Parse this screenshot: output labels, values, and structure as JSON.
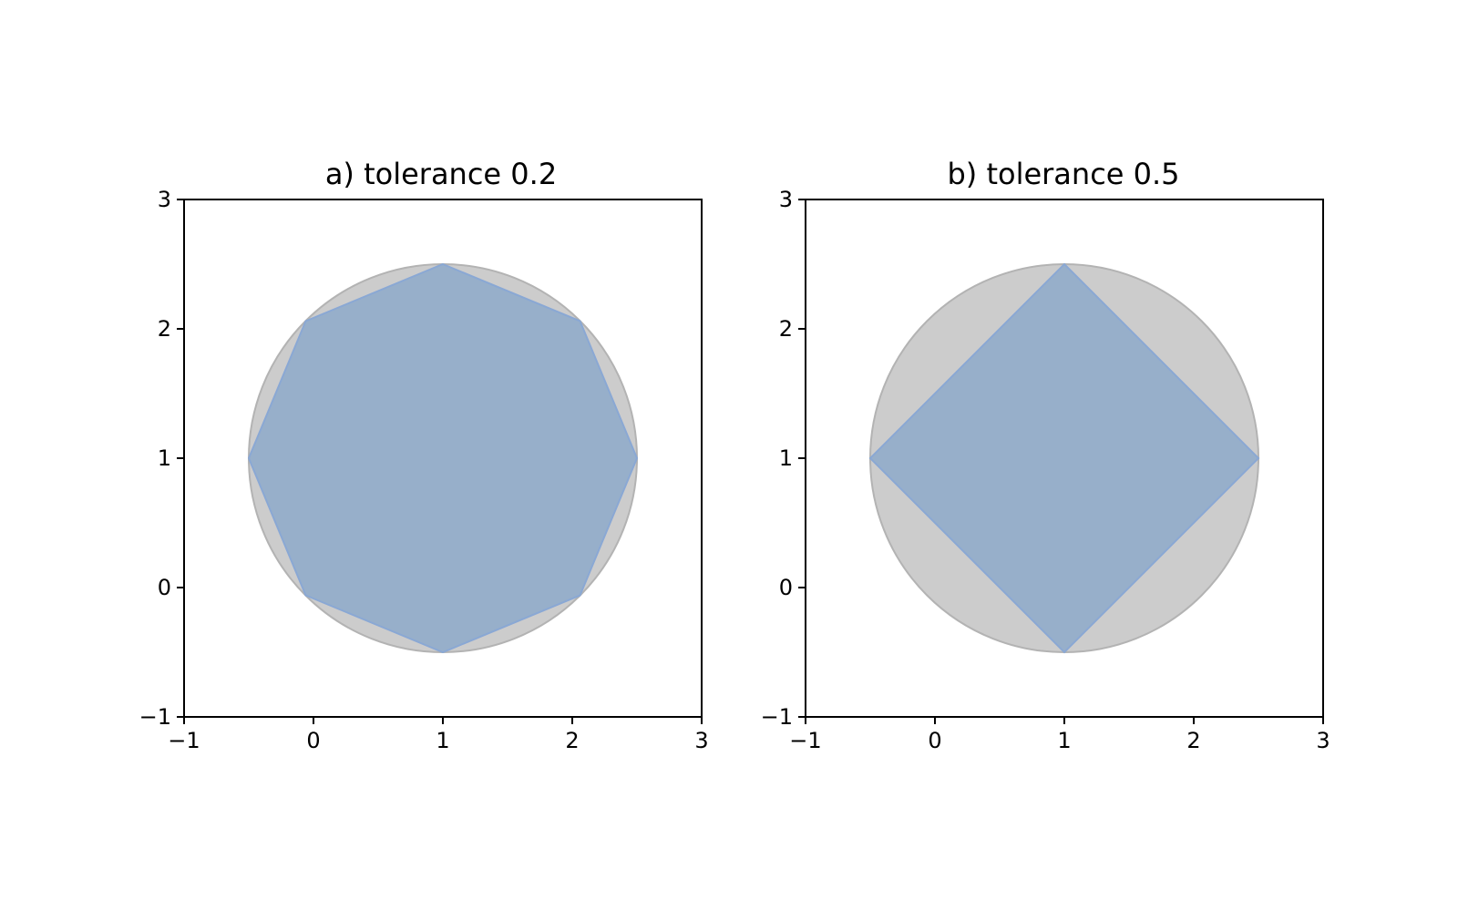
{
  "chart_data": [
    {
      "type": "area",
      "title": "a) tolerance 0.2",
      "xlim": [
        -1,
        3
      ],
      "ylim": [
        -1,
        3
      ],
      "xticks": [
        -1,
        0,
        1,
        2,
        3
      ],
      "yticks": [
        -1,
        0,
        1,
        2,
        3
      ],
      "xtick_labels": [
        "−1",
        "0",
        "1",
        "2",
        "3"
      ],
      "ytick_labels": [
        "−1",
        "0",
        "1",
        "2",
        "3"
      ],
      "circle": {
        "center": [
          1,
          1
        ],
        "radius": 1.5,
        "fill": "#cccccc",
        "stroke": "#b3b3b3"
      },
      "polygon": {
        "points": [
          [
            1,
            2.5
          ],
          [
            2.06,
            2.06
          ],
          [
            2.5,
            1
          ],
          [
            2.06,
            -0.06
          ],
          [
            1,
            -0.5
          ],
          [
            -0.06,
            -0.06
          ],
          [
            -0.5,
            1
          ],
          [
            -0.06,
            2.06
          ]
        ],
        "fill": "#97afca",
        "stroke": "#8aa8d4"
      },
      "grid": false
    },
    {
      "type": "area",
      "title": "b) tolerance 0.5",
      "xlim": [
        -1,
        3
      ],
      "ylim": [
        -1,
        3
      ],
      "xticks": [
        -1,
        0,
        1,
        2,
        3
      ],
      "yticks": [
        -1,
        0,
        1,
        2,
        3
      ],
      "xtick_labels": [
        "−1",
        "0",
        "1",
        "2",
        "3"
      ],
      "ytick_labels": [
        "−1",
        "0",
        "1",
        "2",
        "3"
      ],
      "circle": {
        "center": [
          1,
          1
        ],
        "radius": 1.5,
        "fill": "#cccccc",
        "stroke": "#b3b3b3"
      },
      "polygon": {
        "points": [
          [
            1,
            2.5
          ],
          [
            2.5,
            1
          ],
          [
            1,
            -0.5
          ],
          [
            -0.5,
            1
          ]
        ],
        "fill": "#97afca",
        "stroke": "#8aa8d4"
      },
      "grid": false
    }
  ]
}
